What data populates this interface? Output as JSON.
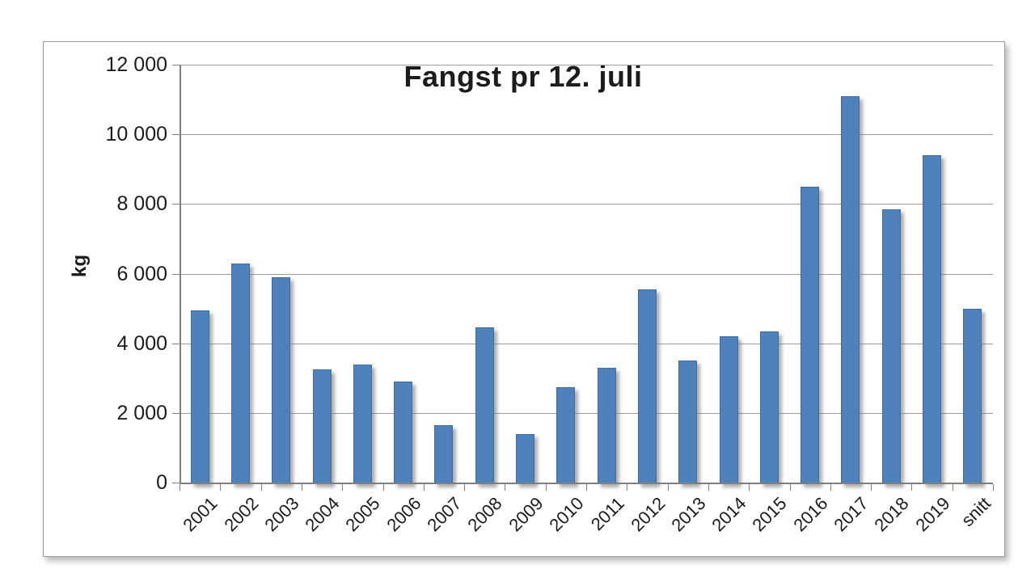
{
  "chart_data": {
    "type": "bar",
    "title": "Fangst pr 12. juli",
    "ylabel": "kg",
    "xlabel": "",
    "categories": [
      "2001",
      "2002",
      "2003",
      "2004",
      "2005",
      "2006",
      "2007",
      "2008",
      "2009",
      "2010",
      "2011",
      "2012",
      "2013",
      "2014",
      "2015",
      "2016",
      "2017",
      "2018",
      "2019",
      "snitt"
    ],
    "values": [
      4950,
      6300,
      5900,
      3250,
      3400,
      2900,
      1650,
      4450,
      1400,
      2750,
      3300,
      5550,
      3500,
      4200,
      4350,
      8500,
      11100,
      7850,
      9400,
      5000
    ],
    "ylim": [
      0,
      12000
    ],
    "ytick_step": 2000,
    "ytick_labels": [
      "0",
      "2 000",
      "4 000",
      "6 000",
      "8 000",
      "10 000",
      "12 000"
    ],
    "grid": true,
    "legend": "none",
    "bar_color": "#4f81bd",
    "bar_border_color": "#3e6ca5",
    "gridline_color": "#9d9d9d",
    "axis_color": "#7f7f7f",
    "text_color": "#1c1c1c"
  }
}
